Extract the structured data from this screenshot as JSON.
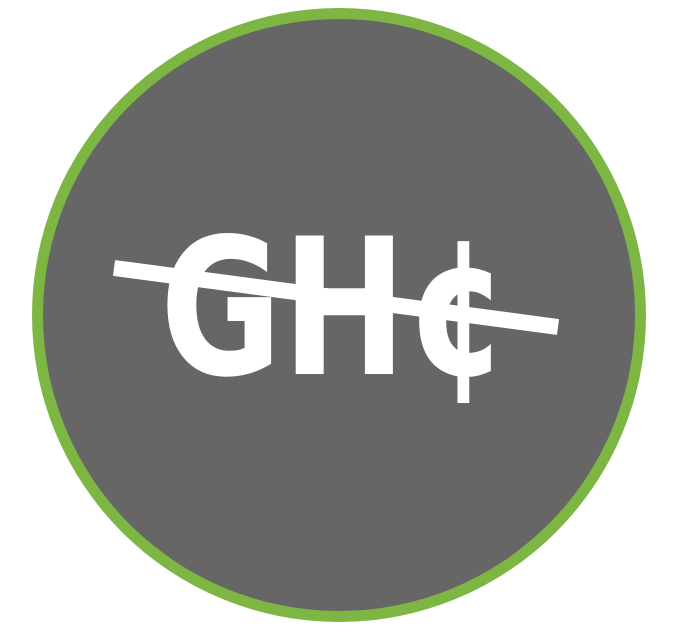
{
  "badge": {
    "symbol_text": "GH¢",
    "ring_color": "#7db643",
    "fill_color": "#666666",
    "text_color": "#ffffff",
    "strike_color": "#ffffff",
    "icon": "no-ghana-cedi-icon"
  }
}
